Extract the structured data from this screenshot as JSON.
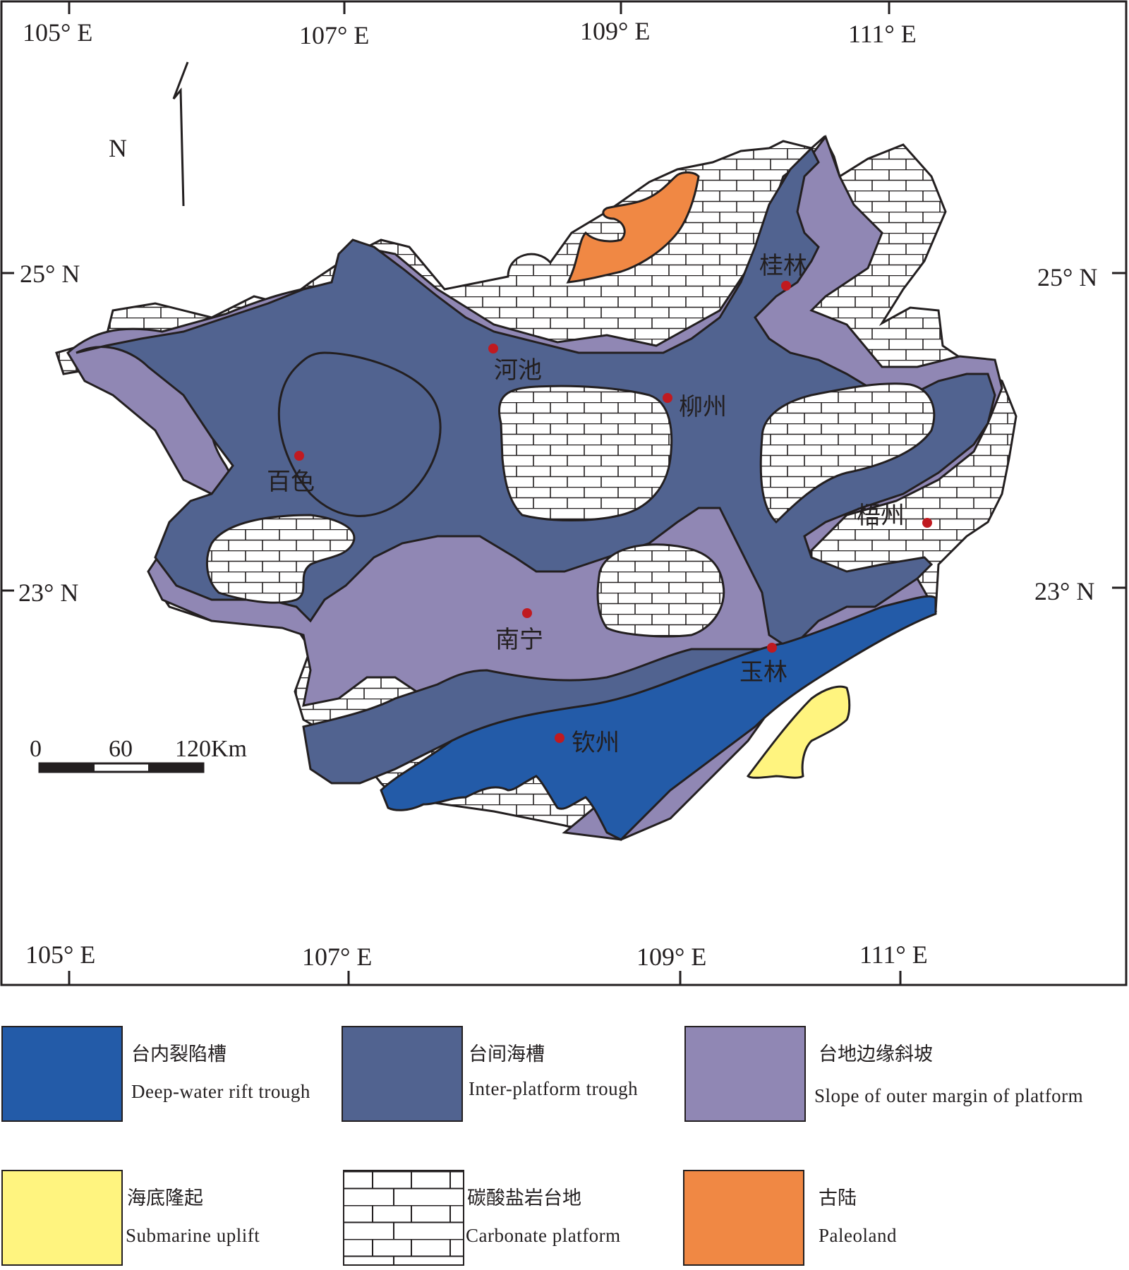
{
  "map": {
    "north_label": "N",
    "top_longitudes": [
      "105° E",
      "107° E",
      "109° E",
      "111° E"
    ],
    "bottom_longitudes": [
      "105° E",
      "107° E",
      "109° E",
      "111° E"
    ],
    "left_latitudes": [
      "25° N",
      "23° N"
    ],
    "right_latitudes": [
      "25° N",
      "23° N"
    ],
    "scale": {
      "zero": "0",
      "mid": "60",
      "end": "120Km"
    },
    "cities": [
      {
        "name": "桂林"
      },
      {
        "name": "河池"
      },
      {
        "name": "柳州"
      },
      {
        "name": "百色"
      },
      {
        "name": "梧州"
      },
      {
        "name": "南宁"
      },
      {
        "name": "玉林"
      },
      {
        "name": "钦州"
      }
    ],
    "colors": {
      "deep_water_rift_trough": "#235ba8",
      "inter_platform_trough": "#516390",
      "slope": "#9087b4",
      "submarine_uplift": "#fff47f",
      "carbonate_platform": "#ffffff",
      "paleoland": "#f08844",
      "city_marker": "#c01a20"
    }
  },
  "legend": [
    {
      "zh": "台内裂陷槽",
      "en": "Deep-water rift trough",
      "color": "#235ba8"
    },
    {
      "zh": "台间海槽",
      "en": "Inter-platform trough",
      "color": "#516390"
    },
    {
      "zh": "台地边缘斜坡",
      "en": "Slope of outer margin of platform",
      "color": "#9087b4"
    },
    {
      "zh": "海底隆起",
      "en": "Submarine uplift",
      "color": "#fff47f"
    },
    {
      "zh": "碳酸盐岩台地",
      "en": "Carbonate platform",
      "color": "#ffffff"
    },
    {
      "zh": "古陆",
      "en": "Paleoland",
      "color": "#f08844"
    }
  ]
}
